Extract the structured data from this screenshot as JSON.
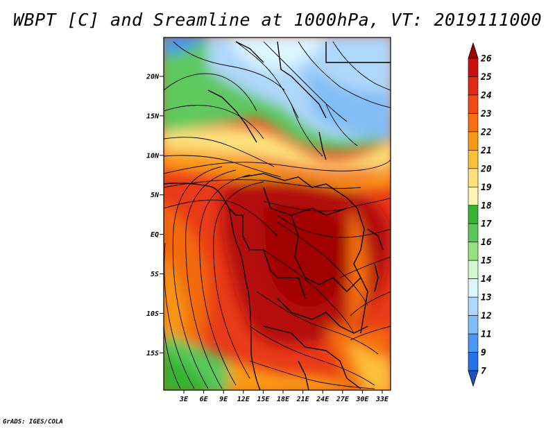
{
  "title": "WBPT [C] and Sreamline at 1000hPa, VT: 2019111000",
  "footer": "GrADS: IGES/COLA",
  "map": {
    "lat_ticks": [
      "20N",
      "15N",
      "10N",
      "5N",
      "EQ",
      "5S",
      "10S",
      "15S"
    ],
    "lon_ticks": [
      "3E",
      "6E",
      "9E",
      "12E",
      "15E",
      "18E",
      "21E",
      "24E",
      "27E",
      "30E",
      "33E"
    ]
  },
  "colorbar": {
    "levels": [
      "26",
      "25",
      "24",
      "23",
      "22",
      "21",
      "20",
      "19",
      "18",
      "17",
      "16",
      "15",
      "14",
      "13",
      "12",
      "11",
      "9",
      "7"
    ],
    "colors": [
      "#a00000",
      "#c81010",
      "#e02a14",
      "#f04a10",
      "#f57010",
      "#fa9a14",
      "#fcbf3a",
      "#fde07a",
      "#fff5b4",
      "#36b432",
      "#5ac85a",
      "#96e07e",
      "#d2f5d2",
      "#dcf5ff",
      "#afd7fa",
      "#82bef5",
      "#4b96f0",
      "#2870e6",
      "#1e50c8"
    ]
  },
  "colors": {
    "frame": "#000000",
    "background": "#ffffff"
  }
}
